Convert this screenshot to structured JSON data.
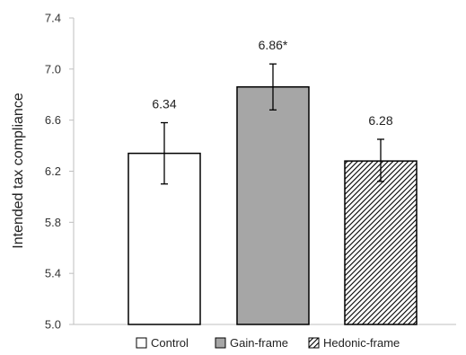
{
  "chart_data": {
    "type": "bar",
    "ylabel": "Intended tax compliance",
    "xlabel": "",
    "ylim": [
      5.0,
      7.4
    ],
    "yticks": [
      "5.0",
      "5.4",
      "5.8",
      "6.2",
      "6.6",
      "7.0",
      "7.4"
    ],
    "grid": false,
    "legend_position": "bottom",
    "categories": [
      "Control",
      "Gain-frame",
      "Hedonic-frame"
    ],
    "values": [
      6.34,
      6.86,
      6.28
    ],
    "error_low": [
      6.1,
      6.68,
      6.12
    ],
    "error_high": [
      6.58,
      7.04,
      6.45
    ],
    "data_labels": [
      "6.34",
      "6.86*",
      "6.28"
    ],
    "fills": [
      "white",
      "gray",
      "hatched"
    ],
    "colors": {
      "gray": "#a6a6a6",
      "edge": "#000000",
      "axis": "#bfbfbf",
      "hatch": "#000000"
    }
  }
}
